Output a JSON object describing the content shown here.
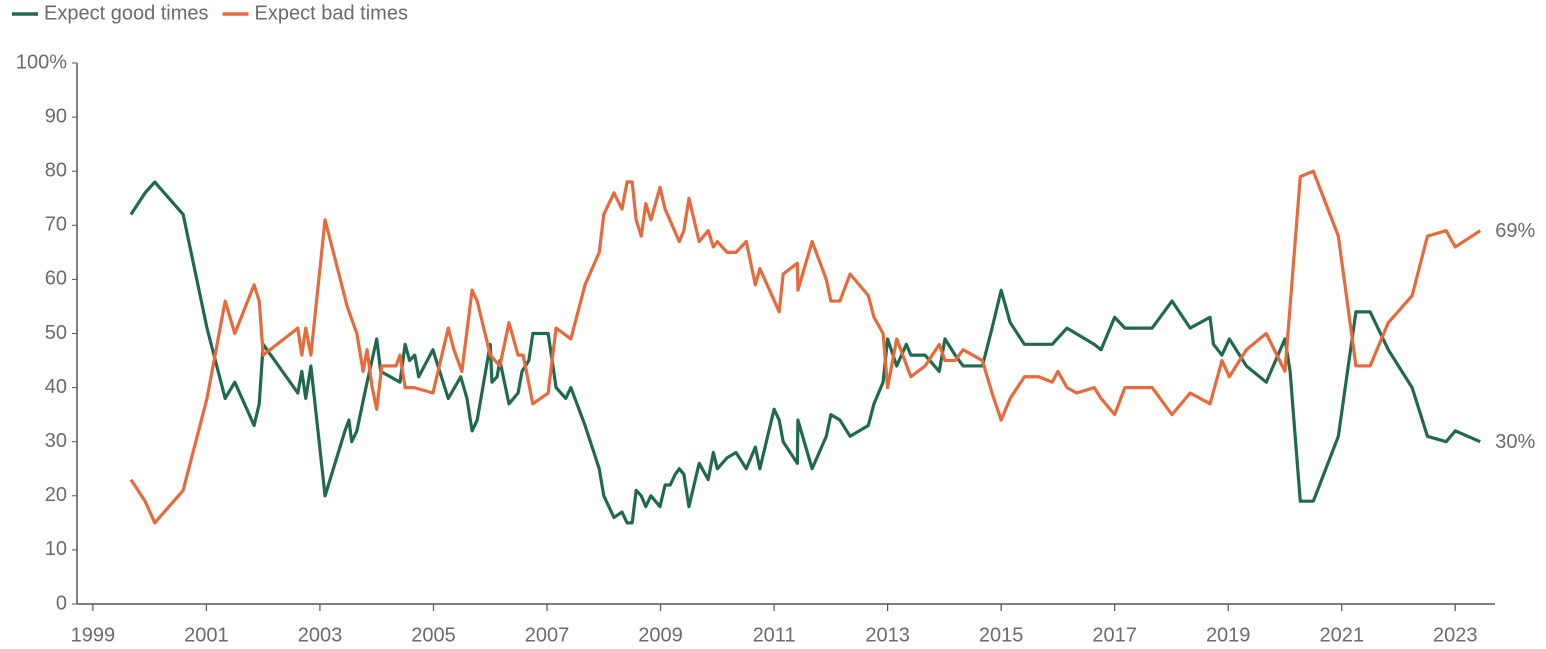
{
  "chart_data": {
    "type": "line",
    "legend": "top-left",
    "xlim": [
      1998.72,
      2023.7
    ],
    "xticks": [
      1999,
      2001,
      2003,
      2005,
      2007,
      2009,
      2011,
      2013,
      2015,
      2017,
      2019,
      2021,
      2023
    ],
    "ylim": [
      0,
      100
    ],
    "yticks": [
      0,
      10,
      20,
      30,
      40,
      50,
      60,
      70,
      80,
      90,
      {
        "value": 100,
        "label": "100%"
      }
    ],
    "series": [
      {
        "name": "Expect good times",
        "color": "#1f6a4d",
        "end_label": "30%",
        "x": [
          1999.67,
          1999.92,
          2000.09,
          2000.59,
          2001.01,
          2001.33,
          2001.5,
          2001.84,
          2001.93,
          2002.0,
          2002.61,
          2002.68,
          2002.75,
          2002.84,
          2003.09,
          2003.44,
          2003.51,
          2003.56,
          2003.65,
          2003.81,
          2004.0,
          2004.07,
          2004.41,
          2004.5,
          2004.58,
          2004.67,
          2004.74,
          2004.99,
          2005.26,
          2005.48,
          2005.59,
          2005.68,
          2005.77,
          2006.0,
          2006.03,
          2006.12,
          2006.17,
          2006.33,
          2006.49,
          2006.56,
          2006.68,
          2006.75,
          2007.02,
          2007.16,
          2007.33,
          2007.42,
          2007.67,
          2007.92,
          2008.0,
          2008.18,
          2008.32,
          2008.41,
          2008.5,
          2008.57,
          2008.66,
          2008.74,
          2008.83,
          2008.99,
          2009.08,
          2009.17,
          2009.26,
          2009.33,
          2009.41,
          2009.5,
          2009.68,
          2009.84,
          2009.93,
          2010.0,
          2010.17,
          2010.33,
          2010.51,
          2010.67,
          2010.75,
          2011.0,
          2011.09,
          2011.16,
          2011.41,
          2011.42,
          2011.67,
          2011.92,
          2012.0,
          2012.16,
          2012.34,
          2012.66,
          2012.76,
          2012.92,
          2013.0,
          2013.16,
          2013.33,
          2013.41,
          2013.66,
          2013.91,
          2014.01,
          2014.19,
          2014.33,
          2014.67,
          2014.84,
          2015.0,
          2015.16,
          2015.41,
          2015.9,
          2016.16,
          2016.64,
          2016.76,
          2017.0,
          2017.18,
          2017.66,
          2018.01,
          2018.33,
          2018.68,
          2018.74,
          2018.89,
          2019.02,
          2019.32,
          2019.67,
          2020.0,
          2020.09,
          2020.27,
          2020.5,
          2020.94,
          2021.25,
          2021.5,
          2021.82,
          2022.24,
          2022.51,
          2022.84,
          2023.0,
          2023.44
        ],
        "values": [
          72,
          76,
          78,
          72,
          51,
          38,
          41,
          33,
          37,
          48,
          39,
          43,
          38,
          44,
          20,
          32,
          34,
          30,
          32,
          40,
          49,
          43,
          41,
          48,
          45,
          46,
          42,
          47,
          38,
          42,
          38,
          32,
          34,
          48,
          41,
          42,
          45,
          37,
          39,
          43,
          45,
          50,
          50,
          40,
          38,
          40,
          33,
          25,
          20,
          16,
          17,
          15,
          15,
          21,
          20,
          18,
          20,
          18,
          22,
          22,
          24,
          25,
          24,
          18,
          26,
          23,
          28,
          25,
          27,
          28,
          25,
          29,
          25,
          36,
          34,
          30,
          26,
          34,
          25,
          31,
          35,
          34,
          31,
          33,
          37,
          41,
          49,
          44,
          48,
          46,
          46,
          43,
          49,
          46,
          44,
          44,
          51,
          58,
          52,
          48,
          48,
          51,
          48,
          47,
          53,
          51,
          51,
          56,
          51,
          53,
          48,
          46,
          49,
          44,
          41,
          49,
          43,
          19,
          19,
          31,
          54,
          54,
          47,
          40,
          31,
          30,
          32,
          30
        ]
      },
      {
        "name": "Expect bad times",
        "color": "#e8693a",
        "end_label": "69%",
        "x": [
          1999.67,
          1999.92,
          2000.09,
          2000.59,
          2001.01,
          2001.33,
          2001.5,
          2001.84,
          2001.93,
          2002.0,
          2002.61,
          2002.68,
          2002.75,
          2002.84,
          2003.09,
          2003.48,
          2003.65,
          2003.76,
          2003.83,
          2003.92,
          2004.0,
          2004.09,
          2004.34,
          2004.41,
          2004.5,
          2004.66,
          2004.99,
          2005.26,
          2005.36,
          2005.5,
          2005.68,
          2005.77,
          2006.0,
          2006.17,
          2006.33,
          2006.49,
          2006.58,
          2006.75,
          2007.02,
          2007.16,
          2007.42,
          2007.67,
          2007.92,
          2008.0,
          2008.18,
          2008.32,
          2008.41,
          2008.5,
          2008.57,
          2008.66,
          2008.74,
          2008.83,
          2008.99,
          2009.08,
          2009.33,
          2009.41,
          2009.5,
          2009.68,
          2009.84,
          2009.93,
          2010.0,
          2010.17,
          2010.33,
          2010.51,
          2010.67,
          2010.75,
          2011.09,
          2011.16,
          2011.41,
          2011.42,
          2011.67,
          2011.92,
          2012.0,
          2012.16,
          2012.34,
          2012.66,
          2012.76,
          2012.92,
          2013.0,
          2013.16,
          2013.41,
          2013.66,
          2013.91,
          2014.01,
          2014.19,
          2014.33,
          2014.67,
          2014.84,
          2015.0,
          2015.16,
          2015.41,
          2015.66,
          2015.9,
          2016.0,
          2016.16,
          2016.33,
          2016.64,
          2016.76,
          2017.0,
          2017.18,
          2017.66,
          2018.01,
          2018.33,
          2018.68,
          2018.89,
          2019.02,
          2019.32,
          2019.67,
          2020.0,
          2020.27,
          2020.5,
          2020.94,
          2021.25,
          2021.5,
          2021.82,
          2022.24,
          2022.51,
          2022.84,
          2023.0,
          2023.44
        ],
        "values": [
          23,
          19,
          15,
          21,
          38,
          56,
          50,
          59,
          56,
          46,
          51,
          46,
          51,
          46,
          71,
          55,
          50,
          43,
          47,
          40,
          36,
          44,
          44,
          46,
          40,
          40,
          39,
          51,
          47,
          43,
          58,
          56,
          46,
          44,
          52,
          46,
          46,
          37,
          39,
          51,
          49,
          59,
          65,
          72,
          76,
          73,
          78,
          78,
          71,
          68,
          74,
          71,
          77,
          73,
          67,
          69,
          75,
          67,
          69,
          66,
          67,
          65,
          65,
          67,
          59,
          62,
          54,
          61,
          63,
          58,
          67,
          60,
          56,
          56,
          61,
          57,
          53,
          50,
          40,
          49,
          42,
          44,
          48,
          45,
          45,
          47,
          45,
          39,
          34,
          38,
          42,
          42,
          41,
          43,
          40,
          39,
          40,
          38,
          35,
          40,
          40,
          35,
          39,
          37,
          45,
          42,
          47,
          50,
          43,
          79,
          80,
          68,
          44,
          44,
          52,
          57,
          68,
          69,
          66,
          69
        ]
      }
    ]
  }
}
